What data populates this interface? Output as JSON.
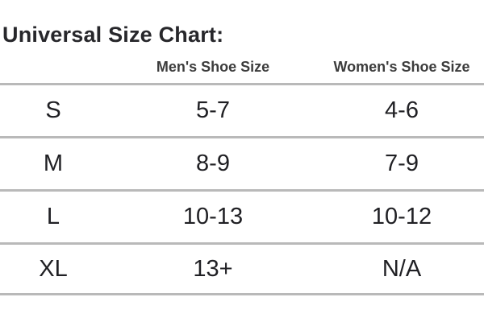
{
  "title": "Universal Size Chart:",
  "table": {
    "columns": [
      "",
      "Men's Shoe Size",
      "Women's Shoe Size"
    ],
    "rows": [
      {
        "size": "S",
        "mens": "5-7",
        "womens": "4-6"
      },
      {
        "size": "M",
        "mens": "8-9",
        "womens": "7-9"
      },
      {
        "size": "L",
        "mens": "10-13",
        "womens": "10-12"
      },
      {
        "size": "XL",
        "mens": "13+",
        "womens": "N/A"
      }
    ]
  },
  "colors": {
    "background": "#ffffff",
    "title_text": "#27272b",
    "header_text": "#3c3c3c",
    "cell_text": "#202024",
    "divider": "#b9b9b9"
  },
  "chart_data": {
    "type": "table",
    "title": "Universal Size Chart:",
    "columns": [
      "",
      "Men's Shoe Size",
      "Women's Shoe Size"
    ],
    "rows": [
      [
        "S",
        "5-7",
        "4-6"
      ],
      [
        "M",
        "8-9",
        "7-9"
      ],
      [
        "L",
        "10-13",
        "10-12"
      ],
      [
        "XL",
        "13+",
        "N/A"
      ]
    ],
    "layout": {
      "title_position": "top-left",
      "row_dividers": true,
      "column_alignment": "center"
    }
  }
}
